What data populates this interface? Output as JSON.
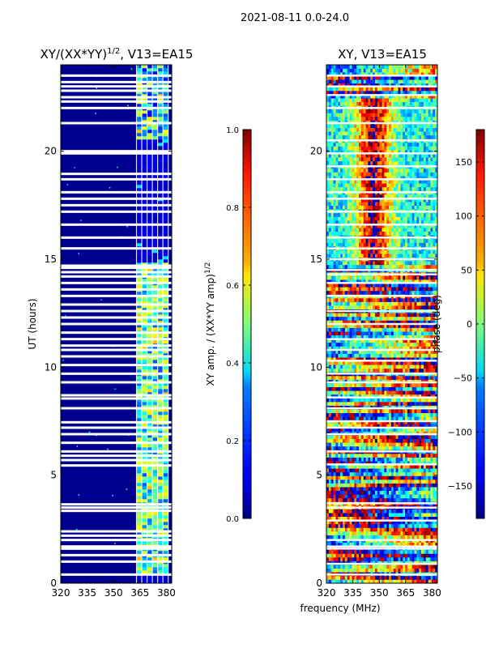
{
  "suptitle": "2021-08-11 0.0-24.0",
  "chart_data": [
    {
      "id": "amp",
      "type": "heatmap",
      "title_main": "XY/(XX*YY)",
      "title_sup": "1/2",
      "title_tail": ", V13=EA15",
      "xlabel": "",
      "ylabel": "UT (hours)",
      "xlim": [
        320,
        383
      ],
      "ylim": [
        0,
        24
      ],
      "xticks": [
        320,
        335,
        350,
        365,
        380
      ],
      "yticks": [
        0,
        5,
        10,
        15,
        20
      ],
      "channel_edges": [
        363,
        366,
        369,
        372,
        375,
        378,
        381
      ],
      "colorbar": {
        "label_main": "XY amp. / (XX*YY amp)",
        "label_sup": "1/2",
        "range": [
          0.0,
          1.0
        ],
        "ticks": [
          "0.0",
          "0.2",
          "0.4",
          "0.6",
          "0.8",
          "1.0"
        ]
      },
      "flagged_hours": [
        0.4,
        1.0,
        1.3,
        1.6,
        1.65,
        1.7,
        2.0,
        2.2,
        2.4,
        3.35,
        3.5,
        3.65,
        5.45,
        5.7,
        5.9,
        6.1,
        6.5,
        6.9,
        7.2,
        7.45,
        8.1,
        8.55,
        8.7,
        9.3,
        9.7,
        10.1,
        10.5,
        10.8,
        11.0,
        11.3,
        11.6,
        12.0,
        12.3,
        12.6,
        12.9,
        13.3,
        13.6,
        13.9,
        14.2,
        14.4,
        14.6,
        14.7,
        15.5,
        16.0,
        16.6,
        17.2,
        17.5,
        17.8,
        18.1,
        18.7,
        18.95,
        19.9,
        20.0,
        21.3,
        22.0,
        22.3,
        22.5,
        22.8,
        23.0,
        23.2,
        23.5
      ]
    },
    {
      "id": "phase",
      "type": "heatmap",
      "title": "XY, V13=EA15",
      "xlabel": "frequency (MHz)",
      "ylabel": "",
      "xlim": [
        320,
        383
      ],
      "ylim": [
        0,
        24
      ],
      "xticks": [
        320,
        335,
        350,
        365,
        380
      ],
      "yticks": [
        0,
        5,
        10,
        15,
        20
      ],
      "colorbar": {
        "label": "phase (deg)",
        "range": [
          -180,
          180
        ],
        "ticks": [
          "150",
          "100",
          "50",
          "0",
          "−50",
          "−100",
          "−150"
        ],
        "tick_values": [
          150,
          100,
          50,
          0,
          -50,
          -100,
          -150
        ]
      },
      "flagged_hours": [
        0.4,
        0.9,
        1.6,
        1.7,
        2.0,
        2.9,
        3.5,
        3.7,
        5.5,
        6.1,
        6.9,
        7.2,
        7.5,
        8.1,
        8.6,
        9.3,
        9.7,
        10.3,
        10.8,
        11.3,
        12.0,
        12.6,
        13.3,
        13.9,
        14.3,
        14.5,
        15.0,
        15.5,
        16.0,
        16.6,
        17.2,
        17.8,
        18.1,
        18.7,
        19.3,
        19.9,
        20.5,
        21.3,
        22.0,
        22.6,
        23.0,
        23.5
      ]
    }
  ]
}
